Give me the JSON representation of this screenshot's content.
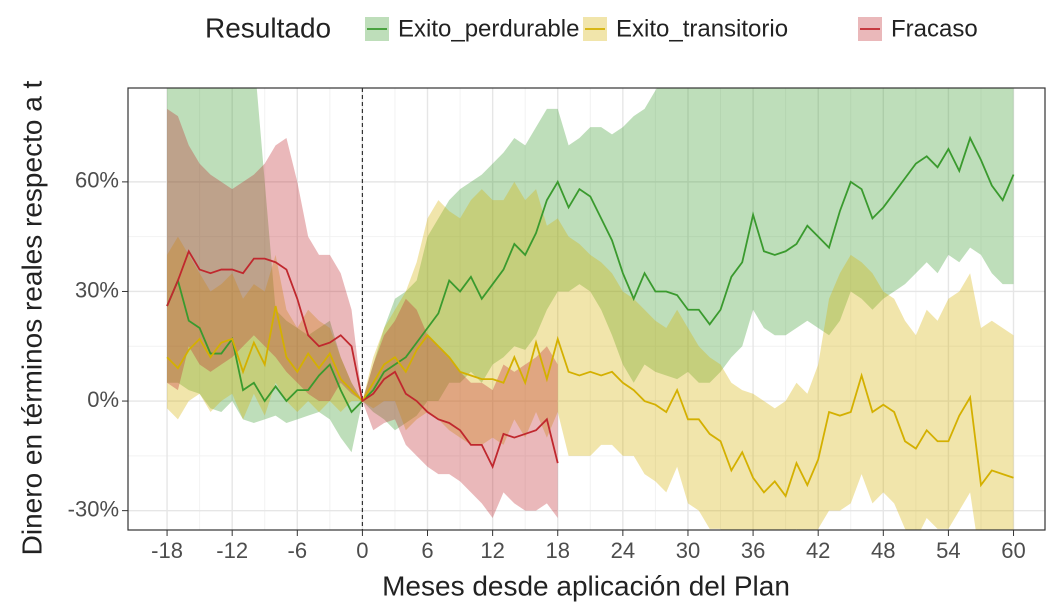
{
  "chart_data": {
    "type": "line-ribbon",
    "legend_title": "Resultado",
    "x_label": "Meses desde aplicación del Plan",
    "y_label": "Dinero en términos reales respecto a t",
    "xlim": [
      -21.6,
      62.9
    ],
    "ylim": [
      -35.3,
      85.7
    ],
    "xticks": [
      -18,
      -12,
      -6,
      0,
      6,
      12,
      18,
      24,
      30,
      36,
      42,
      48,
      54,
      60
    ],
    "yticks": [
      {
        "value": -30,
        "label": "-30%"
      },
      {
        "value": 0,
        "label": "0%"
      },
      {
        "value": 30,
        "label": "30%"
      },
      {
        "value": 60,
        "label": "60%"
      }
    ],
    "grid": true,
    "vline": 0,
    "legend": "top",
    "x": [
      -18,
      -17,
      -16,
      -15,
      -14,
      -13,
      -12,
      -11,
      -10,
      -9,
      -8,
      -7,
      -6,
      -5,
      -4,
      -3,
      -2,
      -1,
      0,
      1,
      2,
      3,
      4,
      5,
      6,
      7,
      8,
      9,
      10,
      11,
      12,
      13,
      14,
      15,
      16,
      17,
      18,
      19,
      20,
      21,
      22,
      23,
      24,
      25,
      26,
      27,
      28,
      29,
      30,
      31,
      32,
      33,
      34,
      35,
      36,
      37,
      38,
      39,
      40,
      41,
      42,
      43,
      44,
      45,
      46,
      47,
      48,
      49,
      50,
      51,
      52,
      53,
      54,
      55,
      56,
      57,
      58,
      59,
      60
    ],
    "series": [
      {
        "name": "Exito_perdurable",
        "color": "#3a9a2e",
        "values": [
          26,
          33,
          22,
          20,
          13,
          13,
          17,
          3,
          5,
          0,
          4,
          0,
          3,
          3,
          7,
          10,
          3,
          -3,
          0,
          3,
          8,
          10,
          12,
          16,
          20,
          24,
          33,
          30,
          34,
          28,
          32,
          36,
          43,
          40,
          46,
          55,
          60,
          53,
          58,
          56,
          50,
          44,
          35,
          28,
          35,
          30,
          30,
          29,
          25,
          25,
          21,
          25,
          34,
          38,
          51,
          41,
          40,
          41,
          43,
          48,
          45,
          42,
          52,
          60,
          58,
          50,
          53,
          57,
          61,
          65,
          67,
          64,
          69,
          63,
          72,
          66,
          59,
          55,
          62
        ],
        "upper": [
          95,
          95,
          95,
          95,
          95,
          95,
          95,
          95,
          95,
          60,
          25,
          22,
          20,
          18,
          20,
          22,
          12,
          5,
          0,
          10,
          20,
          28,
          30,
          33,
          45,
          50,
          55,
          58,
          60,
          62,
          65,
          68,
          72,
          70,
          75,
          80,
          80,
          70,
          72,
          75,
          75,
          73,
          75,
          78,
          80,
          85,
          90,
          95,
          95,
          95,
          95,
          95,
          95,
          95,
          95,
          95,
          95,
          95,
          95,
          95,
          95,
          95,
          95,
          95,
          95,
          95,
          95,
          95,
          95,
          95,
          95,
          95,
          95,
          95,
          95,
          95,
          95,
          95,
          95
        ],
        "lower": [
          5,
          5,
          3,
          2,
          -2,
          -3,
          0,
          -5,
          -6,
          -5,
          -4,
          -6,
          -5,
          -4,
          -3,
          -5,
          -10,
          -14,
          0,
          -3,
          -5,
          -8,
          -6,
          -4,
          0,
          0,
          5,
          5,
          8,
          5,
          10,
          12,
          15,
          14,
          18,
          25,
          30,
          30,
          32,
          30,
          25,
          18,
          10,
          5,
          10,
          8,
          7,
          6,
          8,
          5,
          5,
          8,
          12,
          15,
          25,
          20,
          18,
          18,
          20,
          22,
          20,
          18,
          22,
          30,
          28,
          25,
          28,
          30,
          32,
          35,
          38,
          35,
          40,
          38,
          42,
          40,
          35,
          32,
          32
        ]
      },
      {
        "name": "Exito_transitorio",
        "color": "#d4b000",
        "values": [
          12,
          9,
          14,
          17,
          12,
          16,
          17,
          8,
          16,
          10,
          26,
          12,
          8,
          13,
          9,
          13,
          6,
          3,
          0,
          5,
          10,
          12,
          8,
          14,
          18,
          15,
          12,
          8,
          7,
          6,
          6,
          5,
          12,
          5,
          16,
          6,
          17,
          8,
          7,
          8,
          7,
          8,
          5,
          3,
          0,
          -1,
          -3,
          3,
          -5,
          -5,
          -9,
          -11,
          -19,
          -14,
          -21,
          -25,
          -22,
          -26,
          -17,
          -23,
          -16,
          -3,
          -4,
          -3,
          7,
          -3,
          -1,
          -3,
          -11,
          -13,
          -8,
          -11,
          -11,
          -4,
          1,
          -23,
          -19,
          -20,
          -21
        ],
        "upper": [
          40,
          45,
          40,
          35,
          30,
          32,
          35,
          28,
          32,
          30,
          40,
          25,
          20,
          25,
          22,
          20,
          12,
          5,
          0,
          12,
          20,
          25,
          30,
          38,
          50,
          55,
          52,
          50,
          55,
          58,
          55,
          55,
          60,
          55,
          58,
          48,
          50,
          45,
          43,
          40,
          38,
          35,
          30,
          28,
          25,
          22,
          20,
          25,
          20,
          15,
          12,
          10,
          5,
          3,
          2,
          0,
          -2,
          0,
          5,
          2,
          10,
          28,
          35,
          40,
          38,
          35,
          30,
          28,
          22,
          18,
          25,
          22,
          28,
          30,
          35,
          20,
          22,
          20,
          18
        ],
        "lower": [
          -2,
          -5,
          0,
          2,
          -3,
          0,
          2,
          -5,
          2,
          -4,
          5,
          0,
          -3,
          0,
          -3,
          0,
          -3,
          0,
          0,
          -2,
          0,
          0,
          -8,
          -5,
          -3,
          -5,
          -8,
          -10,
          -12,
          -12,
          -10,
          -12,
          -5,
          -10,
          -3,
          -10,
          -3,
          -15,
          -15,
          -15,
          -12,
          -12,
          -15,
          -15,
          -20,
          -22,
          -25,
          -18,
          -28,
          -30,
          -35,
          -35,
          -40,
          -38,
          -40,
          -42,
          -40,
          -42,
          -35,
          -40,
          -35,
          -30,
          -30,
          -28,
          -20,
          -28,
          -25,
          -28,
          -35,
          -38,
          -32,
          -35,
          -35,
          -30,
          -25,
          -45,
          -42,
          -42,
          -45
        ]
      },
      {
        "name": "Fracaso",
        "color": "#c0282e",
        "values": [
          26,
          33,
          41,
          36,
          35,
          36,
          36,
          35,
          39,
          39,
          38,
          36,
          28,
          18,
          15,
          16,
          18,
          15,
          0,
          2,
          6,
          8,
          2,
          0,
          -3,
          -5,
          -6,
          -8,
          -12,
          -12,
          -18,
          -9,
          -10,
          -9,
          -8,
          -5,
          -17,
          null,
          null,
          null,
          null,
          null,
          null,
          null,
          null,
          null,
          null,
          null,
          null,
          null,
          null,
          null,
          null,
          null,
          null,
          null,
          null,
          null,
          null,
          null,
          null,
          null,
          null,
          null,
          null,
          null,
          null,
          null,
          null,
          null,
          null,
          null,
          null,
          null,
          null,
          null,
          null,
          null,
          null
        ],
        "upper": [
          80,
          78,
          70,
          65,
          62,
          60,
          58,
          60,
          62,
          65,
          70,
          72,
          60,
          45,
          40,
          40,
          35,
          25,
          0,
          10,
          18,
          22,
          28,
          25,
          18,
          15,
          12,
          8,
          5,
          5,
          3,
          10,
          8,
          10,
          12,
          15,
          10,
          null,
          null,
          null,
          null,
          null,
          null,
          null,
          null,
          null,
          null,
          null,
          null,
          null,
          null,
          null,
          null,
          null,
          null,
          null,
          null,
          null,
          null,
          null,
          null,
          null,
          null,
          null,
          null,
          null,
          null,
          null,
          null,
          null,
          null,
          null,
          null,
          null,
          null,
          null,
          null,
          null,
          null
        ],
        "lower": [
          5,
          3,
          15,
          10,
          8,
          10,
          12,
          15,
          18,
          15,
          12,
          8,
          5,
          2,
          0,
          0,
          5,
          2,
          0,
          -8,
          -6,
          -5,
          -12,
          -15,
          -18,
          -20,
          -20,
          -22,
          -25,
          -28,
          -32,
          -25,
          -28,
          -30,
          -30,
          -28,
          -32,
          null,
          null,
          null,
          null,
          null,
          null,
          null,
          null,
          null,
          null,
          null,
          null,
          null,
          null,
          null,
          null,
          null,
          null,
          null,
          null,
          null,
          null,
          null,
          null,
          null,
          null,
          null,
          null,
          null,
          null,
          null,
          null,
          null,
          null,
          null,
          null,
          null,
          null,
          null,
          null,
          null,
          null
        ]
      }
    ]
  }
}
